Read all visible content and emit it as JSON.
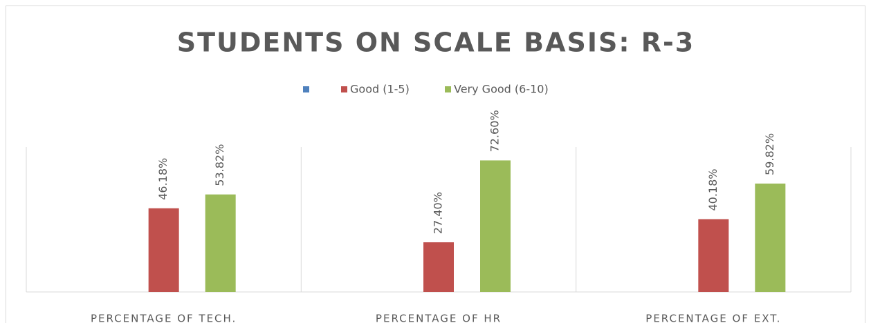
{
  "chart_data": {
    "type": "bar",
    "title": "STUDENTS ON SCALE BASIS: R-3",
    "categories": [
      "PERCENTAGE OF TECH.",
      "PERCENTAGE OF HR",
      "PERCENTAGE OF EXT."
    ],
    "series": [
      {
        "name": null,
        "color": "#4f81bd",
        "values": [
          null,
          null,
          null
        ]
      },
      {
        "name": "Good (1-5)",
        "color": "#c0504d",
        "values": [
          46.18,
          27.4,
          40.18
        ],
        "value_labels": [
          "46.18%",
          "27.40%",
          "40.18%"
        ]
      },
      {
        "name": "Very Good (6-10)",
        "color": "#9bbb59",
        "values": [
          53.82,
          72.6,
          59.82
        ],
        "value_labels": [
          "53.82%",
          "72.60%",
          "59.82%"
        ]
      }
    ],
    "ylim": [
      0,
      80
    ],
    "legend": "top"
  }
}
